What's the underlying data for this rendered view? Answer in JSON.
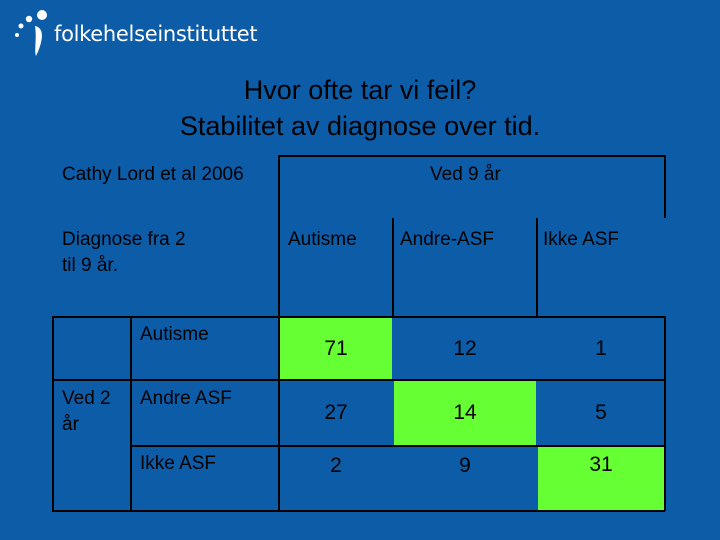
{
  "logo": {
    "name": "folkehelseinstituttet"
  },
  "title": {
    "line1": "Hvor ofte tar vi feil?",
    "line2": "Stabilitet av diagnose over tid."
  },
  "citation": "Cathy Lord et al 2006",
  "at_9_header": "Ved 9 år",
  "row_axis_label": {
    "line1": "Diagnose fra 2",
    "line2": "til 9 år."
  },
  "col_headers": [
    "Autisme",
    "Andre-ASF",
    "Ikke ASF"
  ],
  "ved2": {
    "line1": "Ved 2",
    "line2": "år"
  },
  "rows": [
    {
      "label": "Autisme",
      "values": [
        "71",
        "12",
        "1"
      ]
    },
    {
      "label": "Andre ASF",
      "values": [
        "27",
        "14",
        "5"
      ]
    },
    {
      "label": "Ikke ASF",
      "values": [
        "2",
        "9",
        "31"
      ]
    }
  ],
  "colors": {
    "background": "#0d5ca8",
    "highlight": "#66ff33",
    "title": "#000000"
  }
}
